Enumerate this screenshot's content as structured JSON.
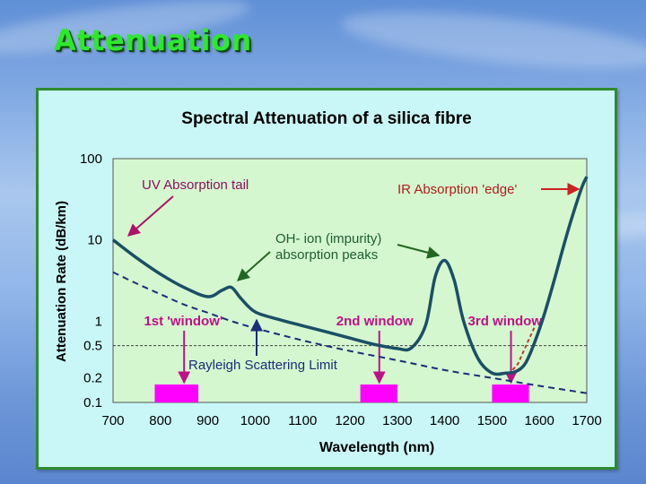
{
  "slide": {
    "title": "Attenuation"
  },
  "colors": {
    "title_green": "#2ee82e",
    "plot_bg": "#d4f7cf",
    "frame_bg": "#c9f7f7",
    "frame_border": "#2e8b2e",
    "curve": "#1a4f66",
    "rayleigh": "#1a2e7a",
    "window_marker": "#ff00ff",
    "arrow_uv": "#b0106a",
    "arrow_oh": "#226622",
    "arrow_ir": "#cc2222",
    "arrow_rayleigh": "#1a2e7a",
    "label_uv": "#8b1060",
    "label_oh": "#1f5e33",
    "label_ir": "#b01c1c",
    "label_rayleigh": "#1a2e7a",
    "label_window": "#c01088",
    "ir_edge_dash": "#b8401a"
  },
  "chart_data": {
    "type": "line",
    "title": "Spectral Attenuation of a silica fibre",
    "xlabel": "Wavelength (nm)",
    "ylabel": "Attenuation Rate (dB/km)",
    "xlim": [
      700,
      1700
    ],
    "y_scale": "log",
    "ylim": [
      0.1,
      100
    ],
    "x_ticks": [
      700,
      800,
      900,
      1000,
      1100,
      1200,
      1300,
      1400,
      1500,
      1600,
      1700
    ],
    "y_ticks": [
      {
        "value": 100,
        "label": "100"
      },
      {
        "value": 10,
        "label": "10"
      },
      {
        "value": 1,
        "label": "1"
      },
      {
        "value": 0.5,
        "label": "0.5"
      },
      {
        "value": 0.2,
        "label": "0.2"
      },
      {
        "value": 0.1,
        "label": "0.1"
      }
    ],
    "reference_line": {
      "y": 0.5
    },
    "series": [
      {
        "x": [
          700,
          750,
          800,
          850,
          900,
          930,
          950,
          970,
          1000,
          1050,
          1100,
          1150,
          1200,
          1250,
          1300,
          1330,
          1360,
          1380,
          1400,
          1420,
          1440,
          1470,
          1500,
          1530,
          1550,
          1570,
          1590,
          1610,
          1630,
          1650,
          1670,
          1690,
          1700
        ],
        "y": [
          10,
          6.0,
          3.8,
          2.6,
          2.0,
          2.4,
          2.6,
          1.9,
          1.3,
          1.05,
          0.88,
          0.74,
          0.62,
          0.52,
          0.46,
          0.47,
          0.9,
          3.5,
          5.6,
          3.2,
          1.0,
          0.35,
          0.23,
          0.23,
          0.24,
          0.3,
          0.55,
          1.2,
          3.0,
          8.0,
          20,
          45,
          60
        ]
      },
      {
        "name": "Rayleigh Scattering Limit",
        "x": [
          700,
          750,
          800,
          850,
          900,
          950,
          1000,
          1100,
          1200,
          1300,
          1400,
          1500,
          1600,
          1700
        ],
        "y": [
          4.0,
          2.9,
          2.15,
          1.6,
          1.27,
          1.0,
          0.82,
          0.58,
          0.43,
          0.33,
          0.25,
          0.2,
          0.16,
          0.13
        ]
      }
    ],
    "ir_edge_dashed": {
      "x": [
        1535,
        1555,
        1575,
        1590
      ],
      "y": [
        0.22,
        0.3,
        0.55,
        0.85
      ]
    },
    "windows": [
      {
        "label": "1st 'window'",
        "x_start": 788,
        "x_end": 880,
        "arrow_x": 850
      },
      {
        "label": "2nd window",
        "x_start": 1222,
        "x_end": 1300,
        "arrow_x": 1262
      },
      {
        "label": "3rd window",
        "x_start": 1500,
        "x_end": 1578,
        "arrow_x": 1540
      }
    ],
    "annotations": [
      {
        "text": "UV Absorption tail"
      },
      {
        "text": "OH- ion (impurity)"
      },
      {
        "text": "absorption peaks"
      },
      {
        "text": "IR Absorption 'edge'"
      },
      {
        "text": "Rayleigh Scattering Limit"
      }
    ]
  }
}
